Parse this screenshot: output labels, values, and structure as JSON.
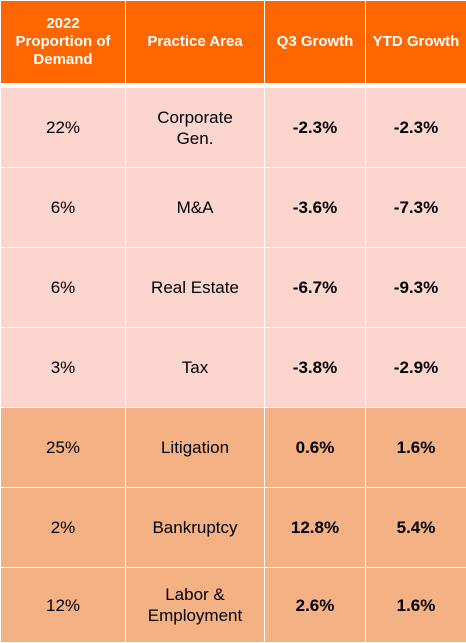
{
  "table": {
    "headers": [
      "2022 Proportion of Demand",
      "Practice Area",
      "Q3 Growth",
      "YTD Growth"
    ],
    "colors": {
      "header_bg": "#ff6600",
      "decline_bg": "#fcd5ce",
      "growth_bg": "#f4b183"
    },
    "rows": [
      {
        "proportion": "22%",
        "area": "Corporate Gen.",
        "q3": "-2.3%",
        "ytd": "-2.3%"
      },
      {
        "proportion": "6%",
        "area": "M&A",
        "q3": "-3.6%",
        "ytd": "-7.3%"
      },
      {
        "proportion": "6%",
        "area": "Real Estate",
        "q3": "-6.7%",
        "ytd": "-9.3%"
      },
      {
        "proportion": "3%",
        "area": "Tax",
        "q3": "-3.8%",
        "ytd": "-2.9%"
      },
      {
        "proportion": "25%",
        "area": "Litigation",
        "q3": "0.6%",
        "ytd": "1.6%"
      },
      {
        "proportion": "2%",
        "area": "Bankruptcy",
        "q3": "12.8%",
        "ytd": "5.4%"
      },
      {
        "proportion": "12%",
        "area": "Labor & Employment",
        "q3": "2.6%",
        "ytd": "1.6%"
      }
    ]
  }
}
